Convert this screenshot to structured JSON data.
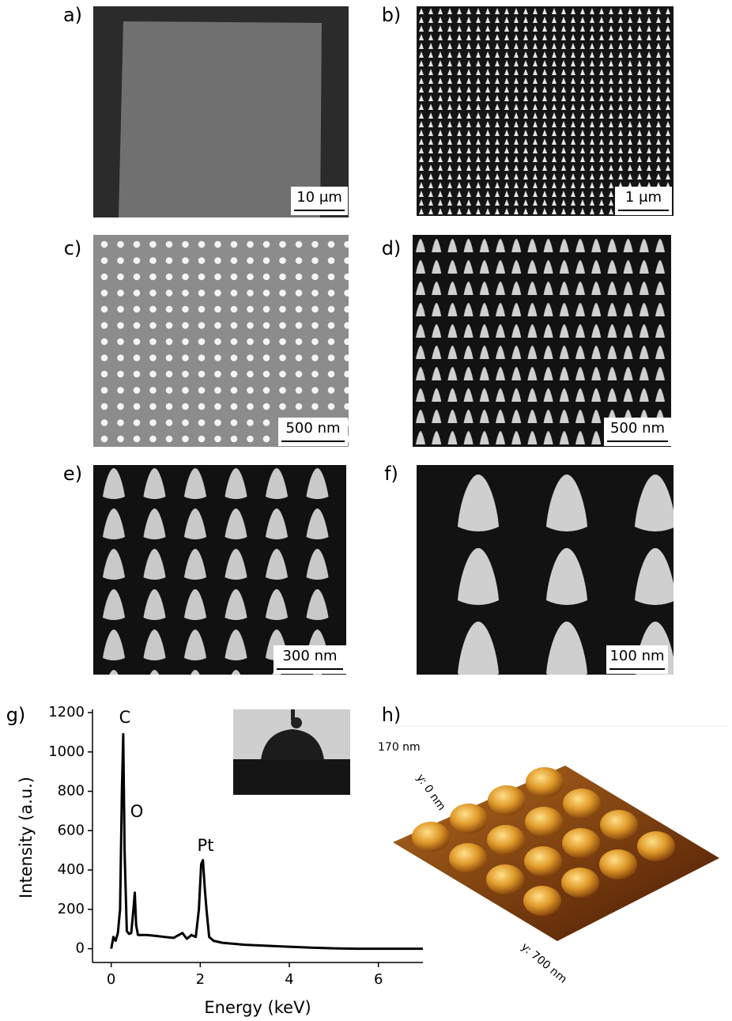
{
  "panels": [
    {
      "label": "a)",
      "scale_bar": "10 μm"
    },
    {
      "label": "b)",
      "scale_bar": "1 μm"
    },
    {
      "label": "c)",
      "scale_bar": "500 nm"
    },
    {
      "label": "d)",
      "scale_bar": "500 nm"
    },
    {
      "label": "e)",
      "scale_bar": "300 nm"
    },
    {
      "label": "f)",
      "scale_bar": "100 nm"
    },
    {
      "label": "g)"
    },
    {
      "label": "h)",
      "annotations": [
        "170 nm",
        "y: 0 nm",
        "y: 700 nm"
      ]
    }
  ],
  "chart_data": {
    "type": "line",
    "x_label": "Energy (keV)",
    "y_label": "Intensity (a.u.)",
    "x": [
      0,
      0.05,
      0.1,
      0.15,
      0.2,
      0.24,
      0.27,
      0.3,
      0.35,
      0.4,
      0.45,
      0.5,
      0.53,
      0.56,
      0.6,
      0.8,
      1.0,
      1.2,
      1.4,
      1.6,
      1.7,
      1.8,
      1.9,
      1.97,
      2.02,
      2.06,
      2.1,
      2.14,
      2.2,
      2.3,
      2.5,
      3,
      3.5,
      4,
      4.5,
      5,
      5.5,
      6,
      6.5,
      7
    ],
    "values": [
      0,
      60,
      40,
      80,
      200,
      800,
      1090,
      500,
      90,
      75,
      80,
      200,
      285,
      120,
      70,
      70,
      65,
      60,
      55,
      80,
      50,
      70,
      60,
      200,
      430,
      450,
      310,
      200,
      60,
      40,
      30,
      20,
      15,
      10,
      5,
      2,
      0,
      0,
      0,
      0
    ],
    "color": "#000000",
    "xlim": [
      -0.42,
      7
    ],
    "ylim": [
      -70,
      1200
    ],
    "xticks": [
      0,
      2,
      4,
      6
    ],
    "yticks": [
      0,
      200,
      400,
      600,
      800,
      1000,
      1200
    ],
    "annotations": [
      "C",
      "O",
      "Pt"
    ]
  }
}
